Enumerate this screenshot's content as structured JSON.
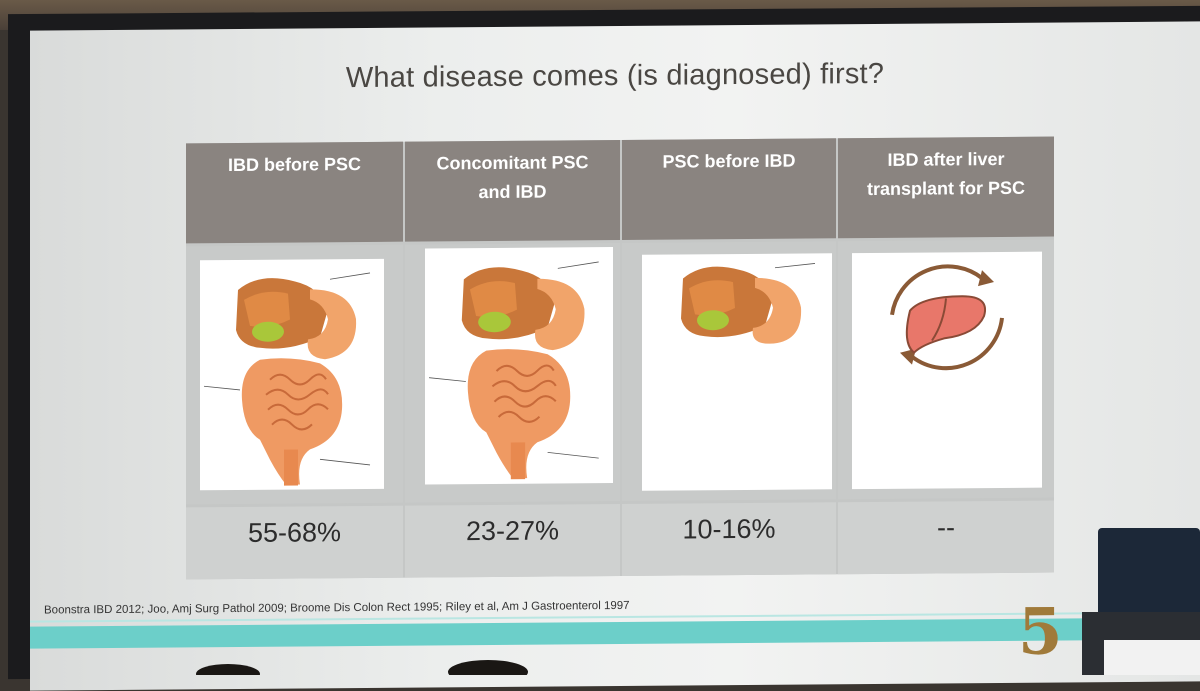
{
  "slide": {
    "title": "What disease comes (is diagnosed) first?",
    "columns": [
      {
        "header": "IBD before PSC",
        "value": "55-68%",
        "illustration": "gi-anatomy-full"
      },
      {
        "header": "Concomitant PSC and IBD",
        "value": "23-27%",
        "illustration": "gi-anatomy-full"
      },
      {
        "header": "PSC before IBD",
        "value": "10-16%",
        "illustration": "liver-stomach-only"
      },
      {
        "header": "IBD after liver transplant for PSC",
        "value": "--",
        "illustration": "liver-cycle-icon"
      }
    ],
    "citation": "Boonstra IBD 2012; Joo, Amj Surg Pathol 2009; Broome Dis Colon Rect 1995; Riley et al, Am J Gastroenterol 1997",
    "logo_number": "5"
  },
  "colors": {
    "header_bg": "#8a8480",
    "cell_bg": "#c8cac9",
    "accent_band": "#6ccfc9",
    "logo": "#a07a3a",
    "liver": "#e8776a"
  }
}
